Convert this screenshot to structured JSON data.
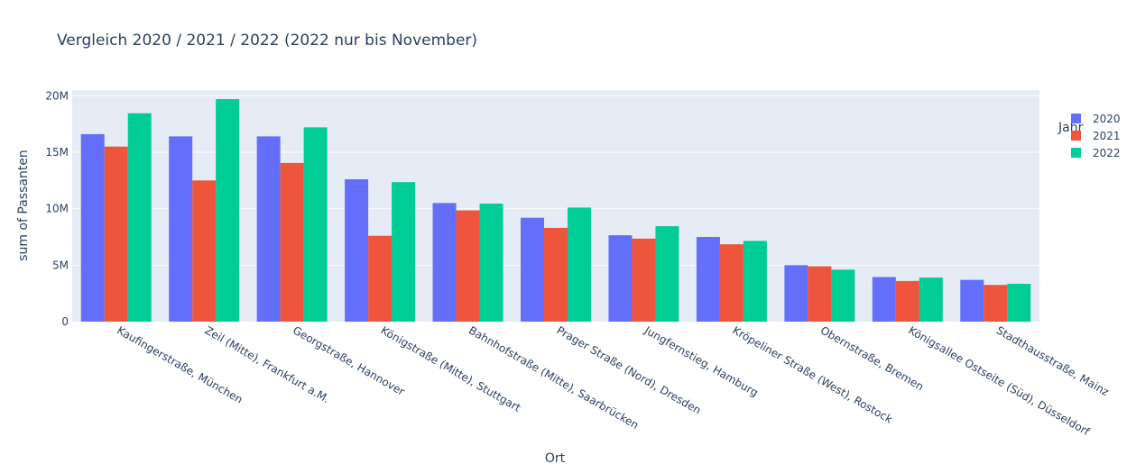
{
  "chart_data": {
    "type": "bar",
    "title": "Vergleich 2020 / 2021 / 2022 (2022 nur bis November)",
    "xlabel": "Ort",
    "ylabel": "sum of Passanten",
    "ylim": [
      0,
      20500000
    ],
    "yticks": [
      {
        "value": 0,
        "label": "0"
      },
      {
        "value": 5000000,
        "label": "5M"
      },
      {
        "value": 10000000,
        "label": "10M"
      },
      {
        "value": 15000000,
        "label": "15M"
      },
      {
        "value": 20000000,
        "label": "20M"
      }
    ],
    "grid": true,
    "legend_title": "Jahr",
    "legend_position": "top-right",
    "categories": [
      "Kaufingerstraße, München",
      "Zeil (Mitte), Frankfurt a.M.",
      "Georgstraße, Hannover",
      "Königstraße (Mitte), Stuttgart",
      "Bahnhofstraße (Mitte), Saarbrücken",
      "Prager Straße (Nord), Dresden",
      "Jungfernstieg, Hamburg",
      "Kröpeliner Straße (West), Rostock",
      "Obernstraße, Bremen",
      "Königsallee Ostseite (Süd), Düsseldorf",
      "Stadthausstraße, Mainz"
    ],
    "series": [
      {
        "name": "2020",
        "color": "#636efa",
        "values": [
          16600000,
          16400000,
          16400000,
          12600000,
          10500000,
          9200000,
          7650000,
          7500000,
          5000000,
          3950000,
          3700000
        ]
      },
      {
        "name": "2021",
        "color": "#ef553b",
        "values": [
          15500000,
          12500000,
          14050000,
          7600000,
          9850000,
          8300000,
          7350000,
          6850000,
          4900000,
          3600000,
          3250000
        ]
      },
      {
        "name": "2022",
        "color": "#00cc96",
        "values": [
          18450000,
          19700000,
          17200000,
          12350000,
          10450000,
          10100000,
          8450000,
          7150000,
          4600000,
          3900000,
          3350000
        ]
      }
    ]
  }
}
